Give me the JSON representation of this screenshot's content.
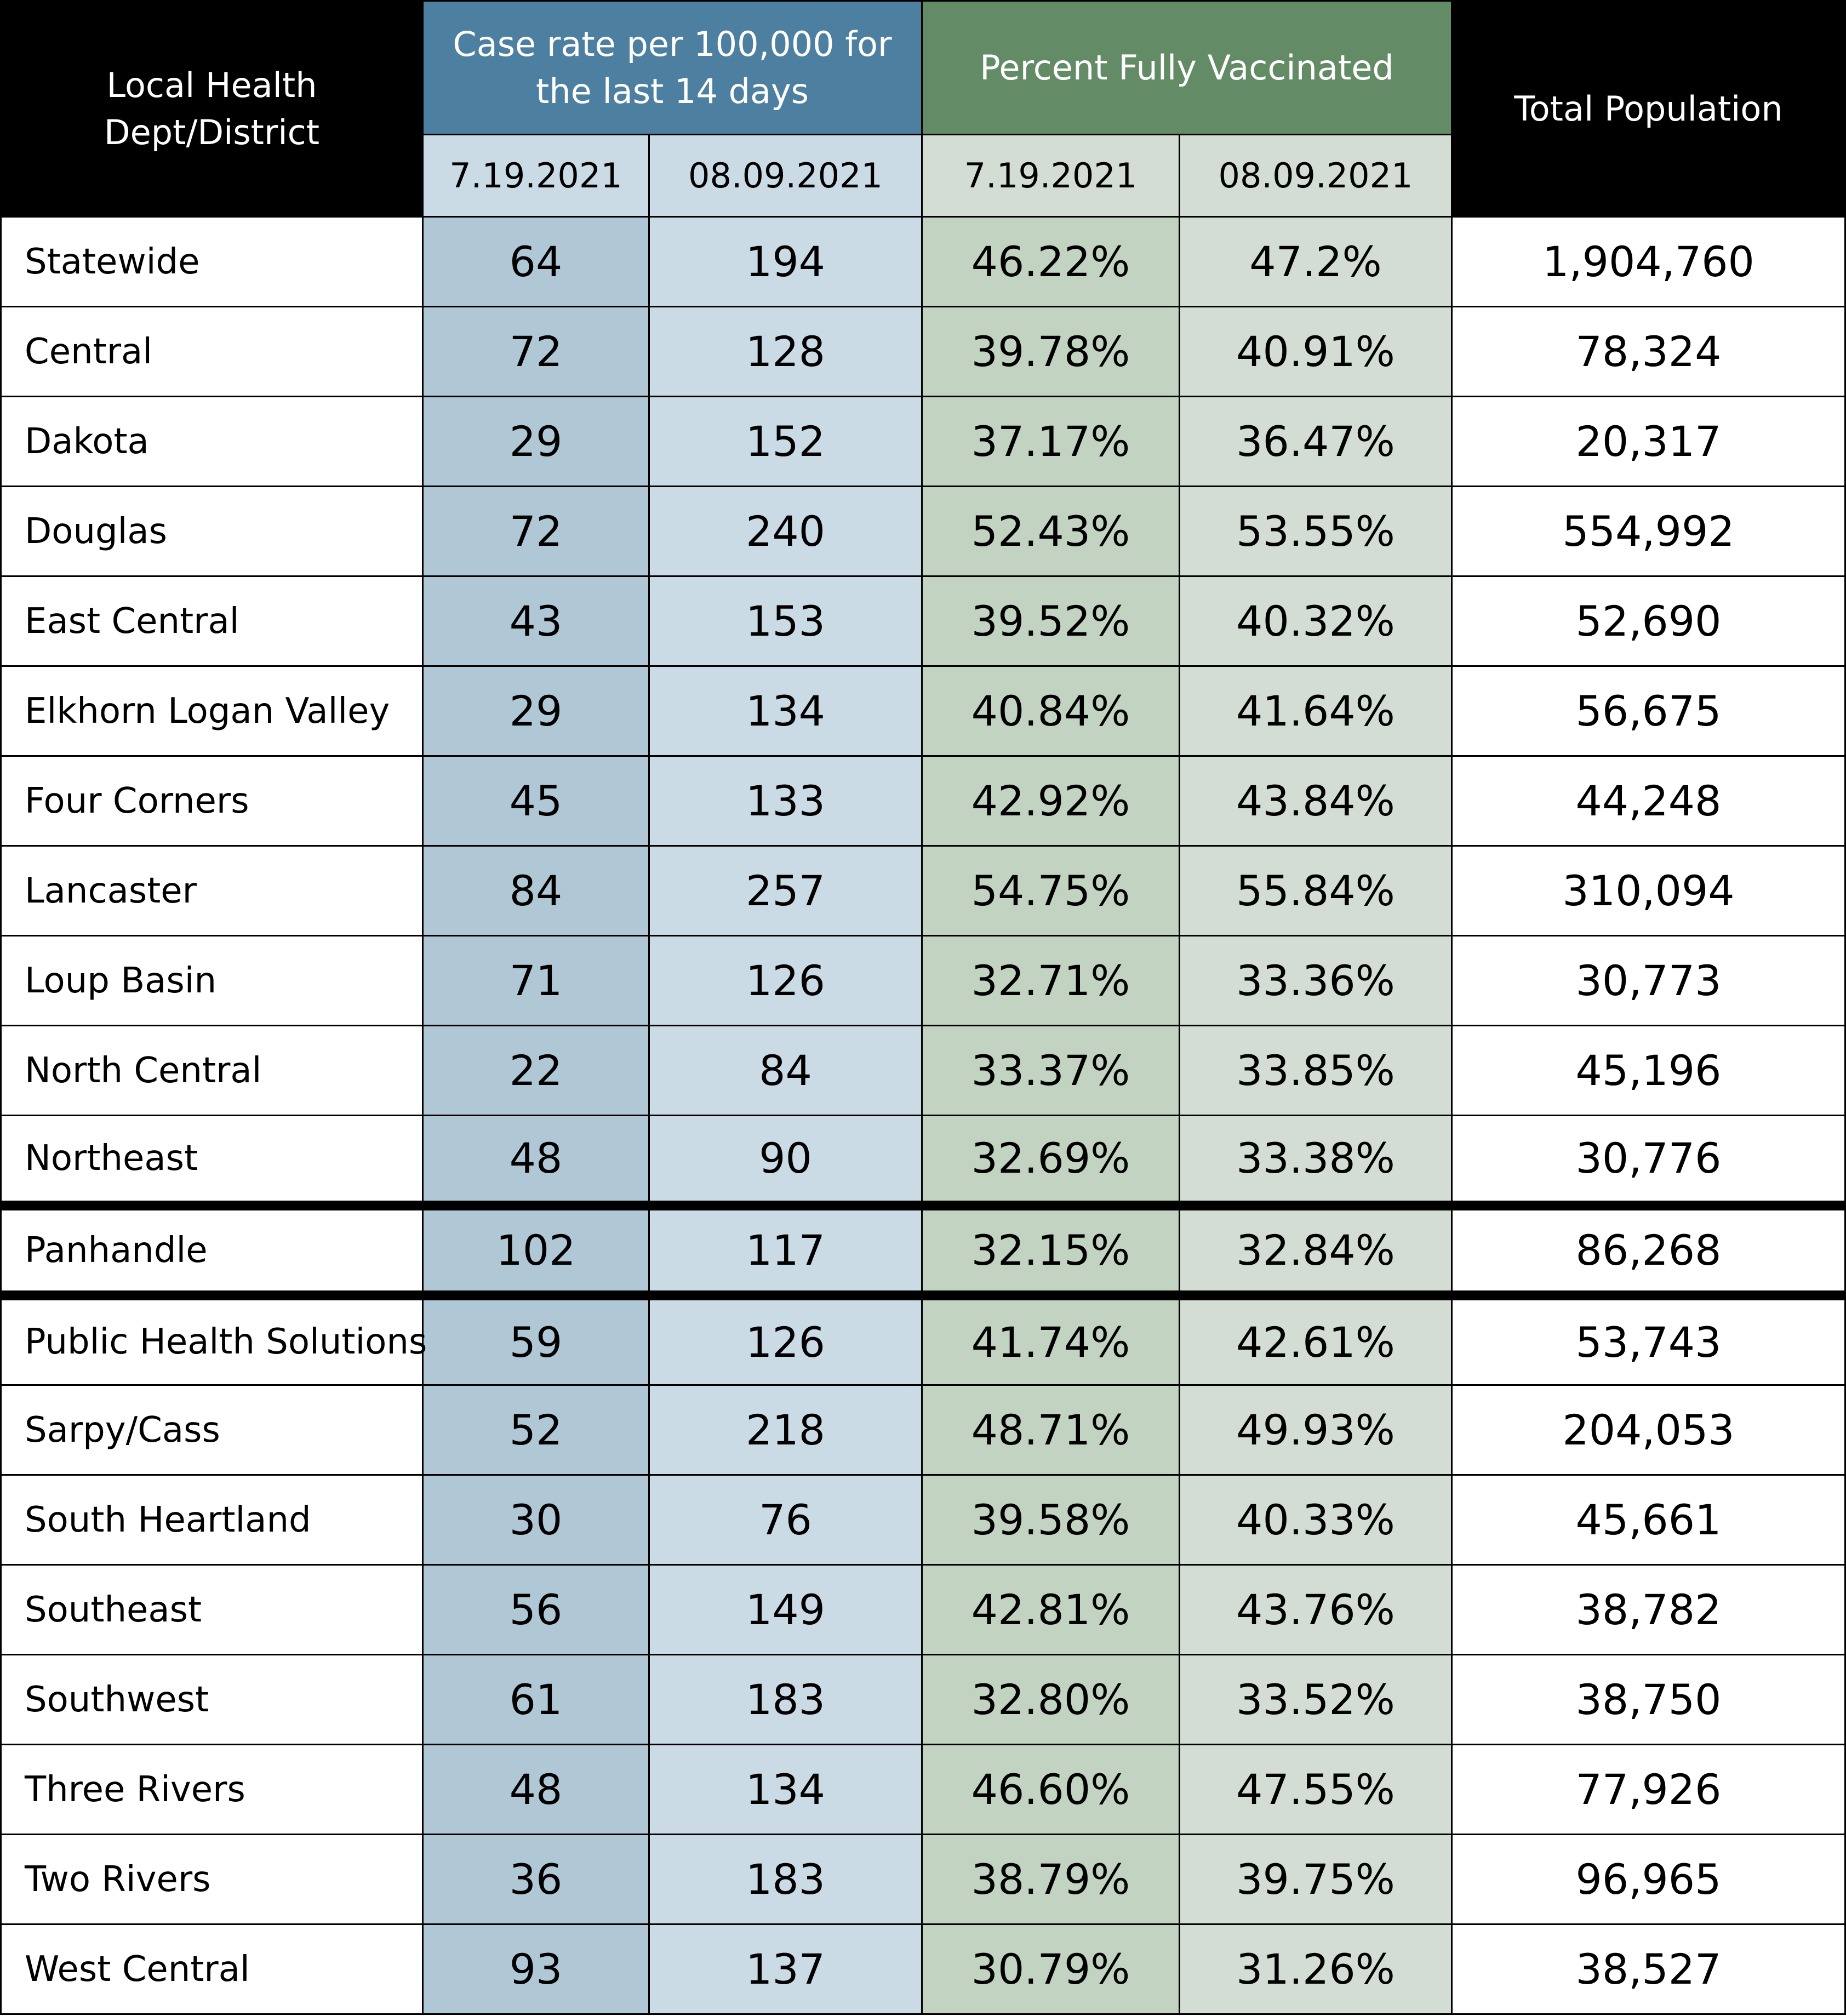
{
  "header": {
    "district_label": "Local Health Dept/District",
    "case_rate_label": "Case rate per 100,000 for the last 14 days",
    "vaccinated_label": "Percent Fully Vaccinated",
    "population_label": "Total Population",
    "dates": [
      "7.19.2021",
      "08.09.2021",
      "7.19.2021",
      "08.09.2021"
    ]
  },
  "rows": [
    {
      "name": "Statewide",
      "case_jul": "64",
      "case_aug": "194",
      "vacc_jul": "46.22%",
      "vacc_aug": "47.2%",
      "population": "1,904,760"
    },
    {
      "name": "Central",
      "case_jul": "72",
      "case_aug": "128",
      "vacc_jul": "39.78%",
      "vacc_aug": "40.91%",
      "population": "78,324"
    },
    {
      "name": "Dakota",
      "case_jul": "29",
      "case_aug": "152",
      "vacc_jul": "37.17%",
      "vacc_aug": "36.47%",
      "population": "20,317"
    },
    {
      "name": "Douglas",
      "case_jul": "72",
      "case_aug": "240",
      "vacc_jul": "52.43%",
      "vacc_aug": "53.55%",
      "population": "554,992"
    },
    {
      "name": "East Central",
      "case_jul": "43",
      "case_aug": "153",
      "vacc_jul": "39.52%",
      "vacc_aug": "40.32%",
      "population": "52,690"
    },
    {
      "name": "Elkhorn Logan Valley",
      "case_jul": "29",
      "case_aug": "134",
      "vacc_jul": "40.84%",
      "vacc_aug": "41.64%",
      "population": "56,675"
    },
    {
      "name": "Four Corners",
      "case_jul": "45",
      "case_aug": "133",
      "vacc_jul": "42.92%",
      "vacc_aug": "43.84%",
      "population": "44,248"
    },
    {
      "name": "Lancaster",
      "case_jul": "84",
      "case_aug": "257",
      "vacc_jul": "54.75%",
      "vacc_aug": "55.84%",
      "population": "310,094"
    },
    {
      "name": "Loup Basin",
      "case_jul": "71",
      "case_aug": "126",
      "vacc_jul": "32.71%",
      "vacc_aug": "33.36%",
      "population": "30,773"
    },
    {
      "name": "North Central",
      "case_jul": "22",
      "case_aug": "84",
      "vacc_jul": "33.37%",
      "vacc_aug": "33.85%",
      "population": "45,196"
    },
    {
      "name": "Northeast",
      "case_jul": "48",
      "case_aug": "90",
      "vacc_jul": "32.69%",
      "vacc_aug": "33.38%",
      "population": "30,776"
    },
    {
      "name": "Panhandle",
      "case_jul": "102",
      "case_aug": "117",
      "vacc_jul": "32.15%",
      "vacc_aug": "32.84%",
      "population": "86,268"
    },
    {
      "name": "Public Health Solutions",
      "case_jul": "59",
      "case_aug": "126",
      "vacc_jul": "41.74%",
      "vacc_aug": "42.61%",
      "population": "53,743"
    },
    {
      "name": "Sarpy/Cass",
      "case_jul": "52",
      "case_aug": "218",
      "vacc_jul": "48.71%",
      "vacc_aug": "49.93%",
      "population": "204,053"
    },
    {
      "name": "South Heartland",
      "case_jul": "30",
      "case_aug": "76",
      "vacc_jul": "39.58%",
      "vacc_aug": "40.33%",
      "population": "45,661"
    },
    {
      "name": "Southeast",
      "case_jul": "56",
      "case_aug": "149",
      "vacc_jul": "42.81%",
      "vacc_aug": "43.76%",
      "population": "38,782"
    },
    {
      "name": "Southwest",
      "case_jul": "61",
      "case_aug": "183",
      "vacc_jul": "32.80%",
      "vacc_aug": "33.52%",
      "population": "38,750"
    },
    {
      "name": "Three Rivers",
      "case_jul": "48",
      "case_aug": "134",
      "vacc_jul": "46.60%",
      "vacc_aug": "47.55%",
      "population": "77,926"
    },
    {
      "name": "Two Rivers",
      "case_jul": "36",
      "case_aug": "183",
      "vacc_jul": "38.79%",
      "vacc_aug": "39.75%",
      "population": "96,965"
    },
    {
      "name": "West Central",
      "case_jul": "93",
      "case_aug": "137",
      "vacc_jul": "30.79%",
      "vacc_aug": "31.26%",
      "population": "38,527"
    }
  ]
}
